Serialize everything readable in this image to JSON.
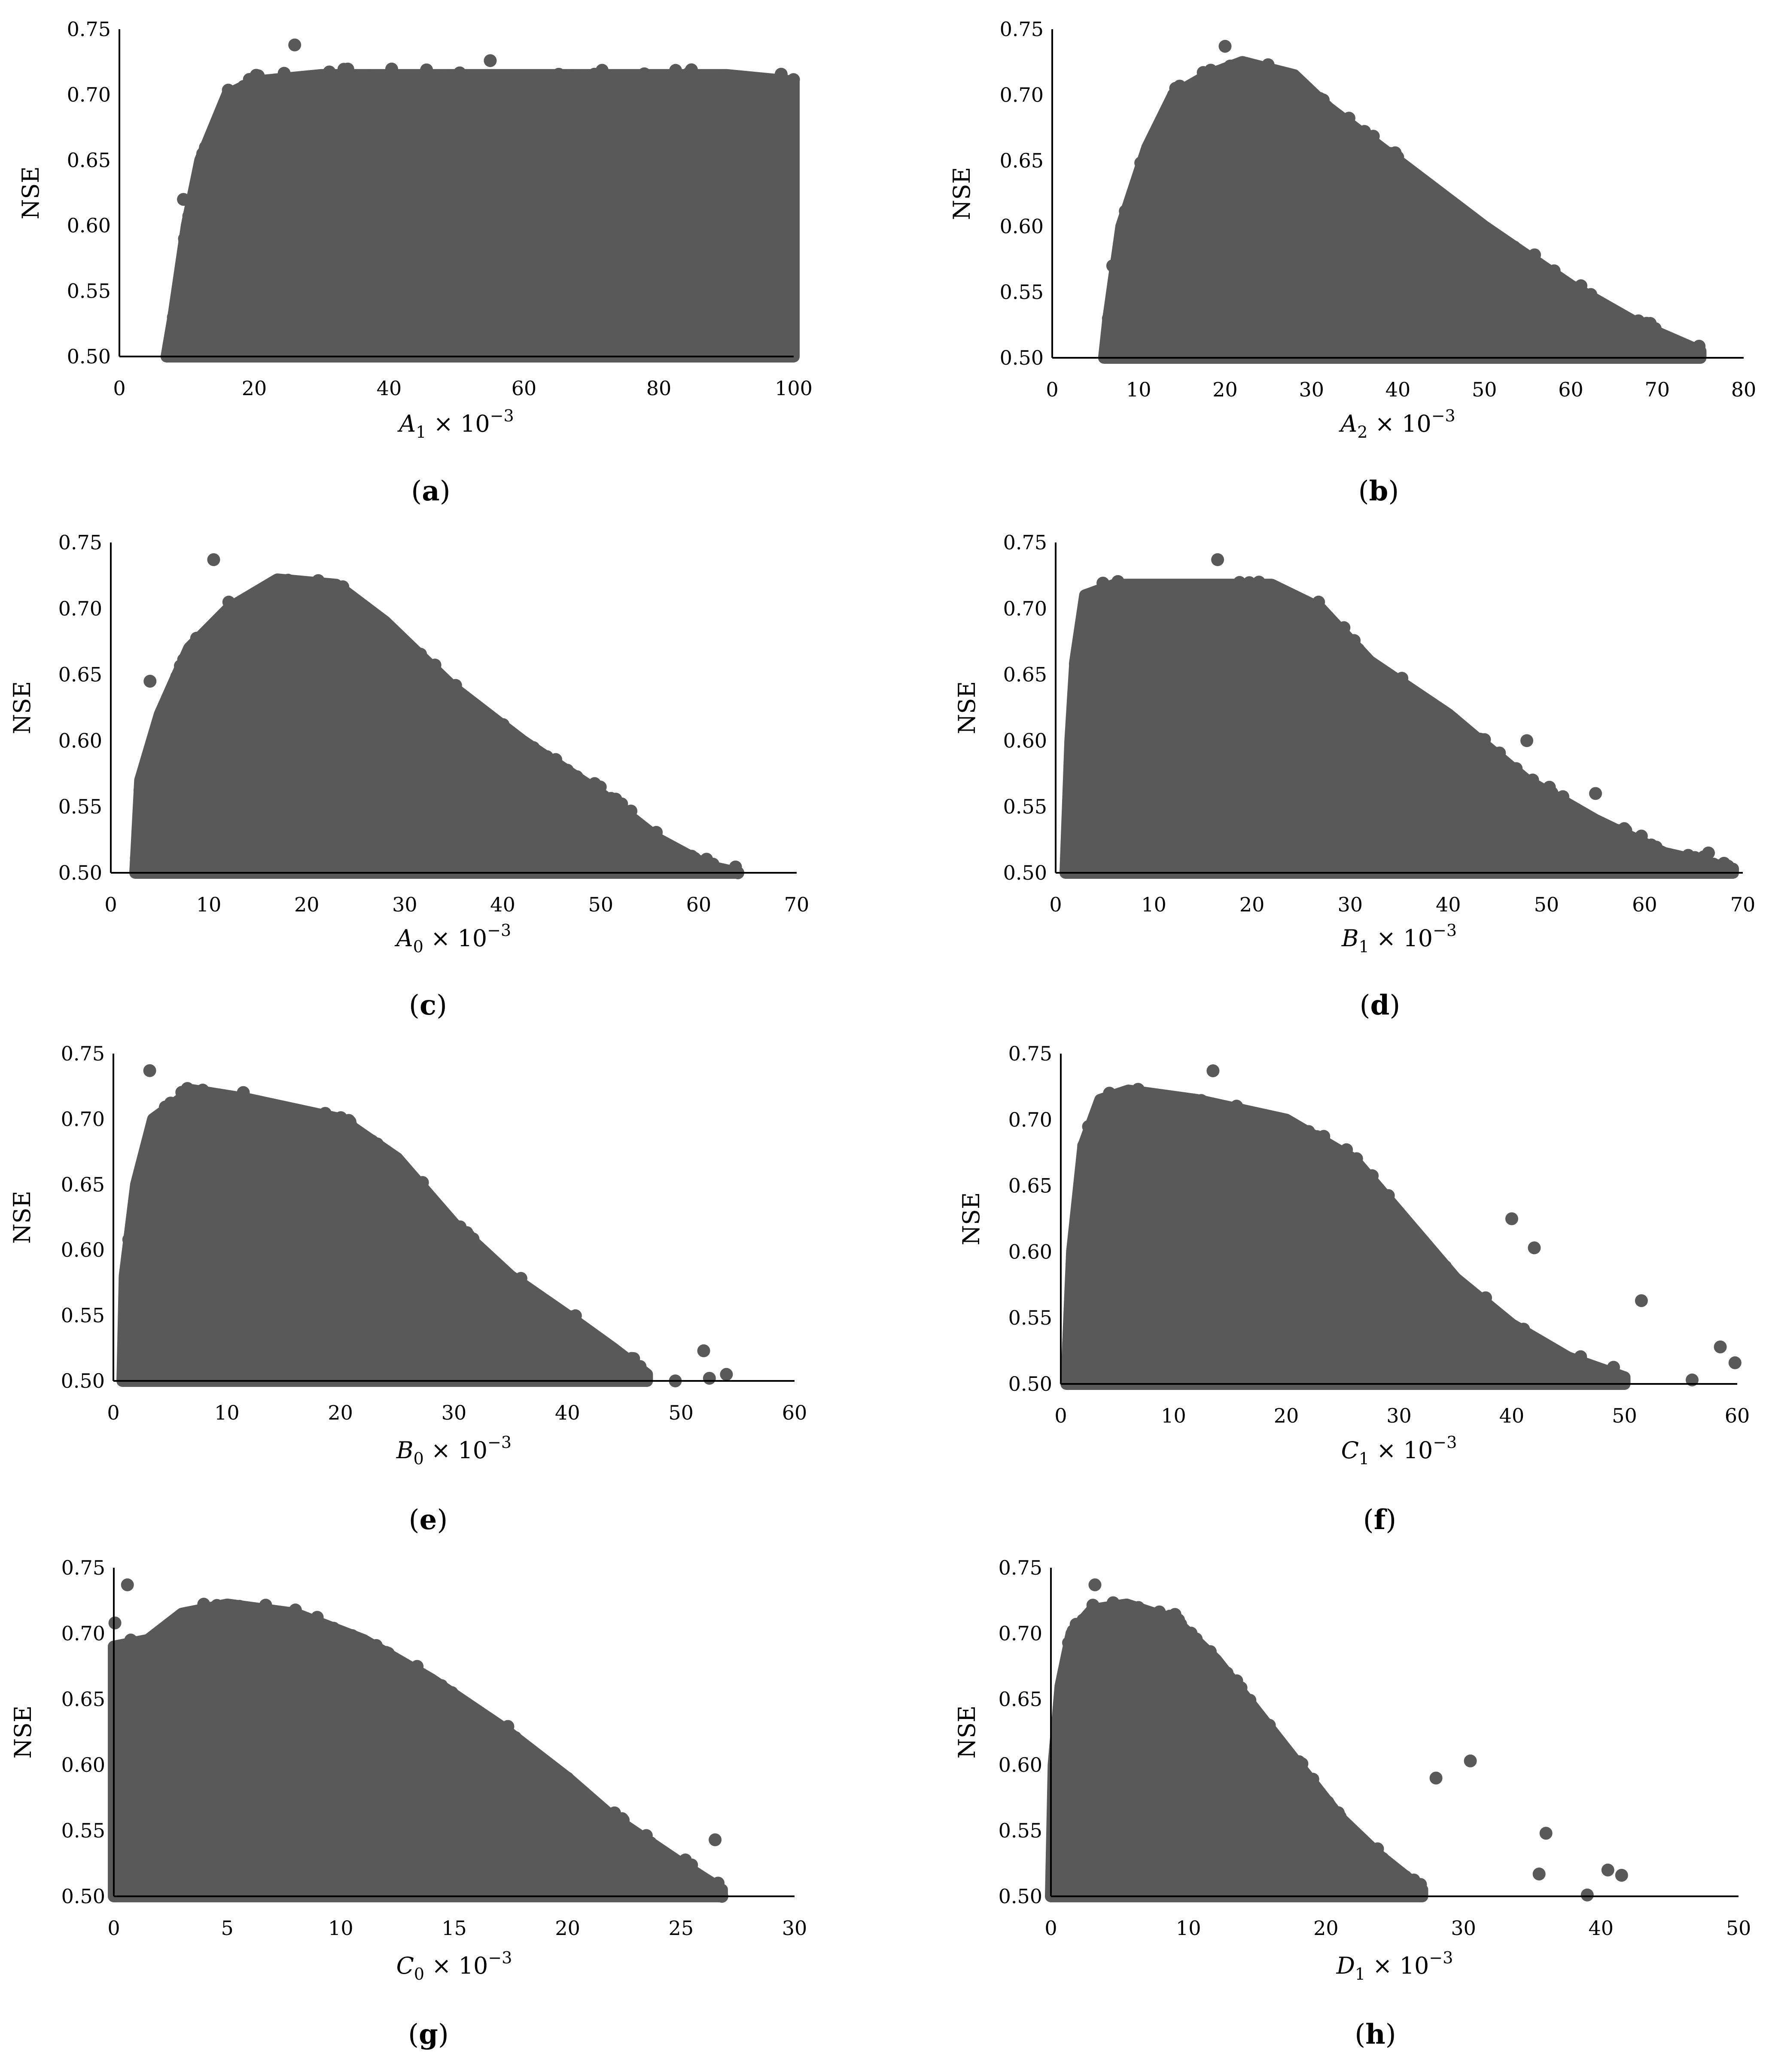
{
  "figure": {
    "dot_color": "#595959",
    "axis_color": "#000000"
  },
  "chart_data": [
    {
      "id": "a",
      "type": "scatter",
      "panel_label": "a",
      "ylabel": "NSE",
      "xlabel": {
        "var": "A",
        "sub": "1",
        "times": "× 10",
        "exp": "−3"
      },
      "xlim": [
        0,
        100
      ],
      "ylim": [
        0.5,
        0.75
      ],
      "xticks": [
        0,
        20,
        40,
        60,
        80,
        100
      ],
      "yticks": [
        0.5,
        0.55,
        0.6,
        0.65,
        0.7,
        0.75
      ],
      "ytick_labels": [
        "0.50",
        "0.55",
        "0.60",
        "0.65",
        "0.70",
        "0.75"
      ],
      "envelope": [
        [
          7,
          0.5
        ],
        [
          8,
          0.53
        ],
        [
          10,
          0.6
        ],
        [
          12,
          0.65
        ],
        [
          16,
          0.7
        ],
        [
          20,
          0.71
        ],
        [
          30,
          0.715
        ],
        [
          60,
          0.715
        ],
        [
          90,
          0.715
        ],
        [
          100,
          0.71
        ],
        [
          100,
          0.5
        ]
      ],
      "notable_points": [
        [
          26,
          0.738
        ],
        [
          7.5,
          0.508
        ],
        [
          55,
          0.726
        ],
        [
          8,
          0.53
        ],
        [
          9.5,
          0.62
        ]
      ]
    },
    {
      "id": "b",
      "type": "scatter",
      "panel_label": "b",
      "ylabel": "NSE",
      "xlabel": {
        "var": "A",
        "sub": "2",
        "times": "× 10",
        "exp": "−3"
      },
      "xlim": [
        0,
        80
      ],
      "ylim": [
        0.5,
        0.75
      ],
      "xticks": [
        0,
        10,
        20,
        30,
        40,
        50,
        60,
        70,
        80
      ],
      "yticks": [
        0.5,
        0.55,
        0.6,
        0.65,
        0.7,
        0.75
      ],
      "ytick_labels": [
        "0.50",
        "0.55",
        "0.60",
        "0.65",
        "0.70",
        "0.75"
      ],
      "envelope": [
        [
          6,
          0.5
        ],
        [
          6.5,
          0.53
        ],
        [
          8,
          0.6
        ],
        [
          11,
          0.66
        ],
        [
          14,
          0.7
        ],
        [
          18,
          0.715
        ],
        [
          22,
          0.725
        ],
        [
          28,
          0.715
        ],
        [
          32,
          0.69
        ],
        [
          40,
          0.65
        ],
        [
          50,
          0.6
        ],
        [
          60,
          0.555
        ],
        [
          68,
          0.525
        ],
        [
          75,
          0.505
        ],
        [
          75,
          0.5
        ]
      ],
      "notable_points": [
        [
          20,
          0.737
        ],
        [
          6.5,
          0.53
        ],
        [
          7,
          0.57
        ],
        [
          72,
          0.51
        ],
        [
          74.5,
          0.505
        ]
      ]
    },
    {
      "id": "c",
      "type": "scatter",
      "panel_label": "c",
      "ylabel": "NSE",
      "xlabel": {
        "var": "A",
        "sub": "0",
        "times": "× 10",
        "exp": "−3"
      },
      "xlim": [
        0,
        70
      ],
      "ylim": [
        0.5,
        0.75
      ],
      "xticks": [
        0,
        10,
        20,
        30,
        40,
        50,
        60,
        70
      ],
      "yticks": [
        0.5,
        0.55,
        0.6,
        0.65,
        0.7,
        0.75
      ],
      "ytick_labels": [
        "0.50",
        "0.55",
        "0.60",
        "0.65",
        "0.70",
        "0.75"
      ],
      "envelope": [
        [
          2.5,
          0.5
        ],
        [
          3,
          0.57
        ],
        [
          5,
          0.62
        ],
        [
          8,
          0.67
        ],
        [
          12,
          0.7
        ],
        [
          17,
          0.722
        ],
        [
          23,
          0.718
        ],
        [
          28,
          0.69
        ],
        [
          35,
          0.64
        ],
        [
          42,
          0.6
        ],
        [
          50,
          0.56
        ],
        [
          56,
          0.525
        ],
        [
          61,
          0.505
        ],
        [
          64,
          0.5
        ]
      ],
      "notable_points": [
        [
          10.5,
          0.737
        ],
        [
          64,
          0.5
        ],
        [
          4,
          0.645
        ],
        [
          59,
          0.51
        ]
      ]
    },
    {
      "id": "d",
      "type": "scatter",
      "panel_label": "d",
      "ylabel": "NSE",
      "xlabel": {
        "var": "B",
        "sub": "1",
        "times": "× 10",
        "exp": "−3"
      },
      "xlim": [
        0,
        70
      ],
      "ylim": [
        0.5,
        0.75
      ],
      "xticks": [
        0,
        10,
        20,
        30,
        40,
        50,
        60,
        70
      ],
      "yticks": [
        0.5,
        0.55,
        0.6,
        0.65,
        0.7,
        0.75
      ],
      "ytick_labels": [
        "0.50",
        "0.55",
        "0.60",
        "0.65",
        "0.70",
        "0.75"
      ],
      "envelope": [
        [
          1,
          0.5
        ],
        [
          1.5,
          0.6
        ],
        [
          2,
          0.66
        ],
        [
          3,
          0.71
        ],
        [
          6,
          0.718
        ],
        [
          15,
          0.718
        ],
        [
          22,
          0.718
        ],
        [
          27,
          0.7
        ],
        [
          32,
          0.66
        ],
        [
          40,
          0.62
        ],
        [
          48,
          0.57
        ],
        [
          55,
          0.54
        ],
        [
          62,
          0.515
        ],
        [
          69,
          0.503
        ],
        [
          69,
          0.5
        ]
      ],
      "notable_points": [
        [
          16.5,
          0.737
        ],
        [
          68.5,
          0.505
        ],
        [
          66.5,
          0.515
        ],
        [
          55,
          0.56
        ],
        [
          48,
          0.6
        ]
      ]
    },
    {
      "id": "e",
      "type": "scatter",
      "panel_label": "e",
      "ylabel": "NSE",
      "xlabel": {
        "var": "B",
        "sub": "0",
        "times": "× 10",
        "exp": "−3"
      },
      "xlim": [
        0,
        60
      ],
      "ylim": [
        0.5,
        0.75
      ],
      "xticks": [
        0,
        10,
        20,
        30,
        40,
        50,
        60
      ],
      "yticks": [
        0.5,
        0.55,
        0.6,
        0.65,
        0.7,
        0.75
      ],
      "ytick_labels": [
        "0.50",
        "0.55",
        "0.60",
        "0.65",
        "0.70",
        "0.75"
      ],
      "envelope": [
        [
          0.8,
          0.5
        ],
        [
          1,
          0.58
        ],
        [
          2,
          0.65
        ],
        [
          3.5,
          0.7
        ],
        [
          7,
          0.722
        ],
        [
          12,
          0.715
        ],
        [
          20,
          0.7
        ],
        [
          25,
          0.67
        ],
        [
          30,
          0.62
        ],
        [
          35,
          0.58
        ],
        [
          40,
          0.55
        ],
        [
          44,
          0.525
        ],
        [
          47,
          0.505
        ],
        [
          47,
          0.5
        ]
      ],
      "notable_points": [
        [
          3.2,
          0.737
        ],
        [
          52,
          0.523
        ],
        [
          54,
          0.505
        ],
        [
          49.5,
          0.5
        ],
        [
          52.5,
          0.502
        ]
      ]
    },
    {
      "id": "f",
      "type": "scatter",
      "panel_label": "f",
      "ylabel": "NSE",
      "xlabel": {
        "var": "C",
        "sub": "1",
        "times": "× 10",
        "exp": "−3"
      },
      "xlim": [
        0,
        60
      ],
      "ylim": [
        0.5,
        0.75
      ],
      "xticks": [
        0,
        10,
        20,
        30,
        40,
        50,
        60
      ],
      "yticks": [
        0.5,
        0.55,
        0.6,
        0.65,
        0.7,
        0.75
      ],
      "ytick_labels": [
        "0.50",
        "0.55",
        "0.60",
        "0.65",
        "0.70",
        "0.75"
      ],
      "envelope": [
        [
          0.5,
          0.5
        ],
        [
          1,
          0.6
        ],
        [
          2,
          0.68
        ],
        [
          3.5,
          0.715
        ],
        [
          6,
          0.722
        ],
        [
          12,
          0.715
        ],
        [
          20,
          0.7
        ],
        [
          26,
          0.67
        ],
        [
          30,
          0.63
        ],
        [
          35,
          0.58
        ],
        [
          40,
          0.545
        ],
        [
          45,
          0.52
        ],
        [
          50,
          0.505
        ],
        [
          50,
          0.5
        ]
      ],
      "notable_points": [
        [
          13.5,
          0.737
        ],
        [
          40,
          0.625
        ],
        [
          42,
          0.603
        ],
        [
          51.5,
          0.563
        ],
        [
          59.8,
          0.516
        ],
        [
          58.5,
          0.528
        ],
        [
          56,
          0.503
        ]
      ]
    },
    {
      "id": "g",
      "type": "scatter",
      "panel_label": "g",
      "ylabel": "NSE",
      "xlabel": {
        "var": "C",
        "sub": "0",
        "times": "× 10",
        "exp": "−3"
      },
      "xlim": [
        0,
        30
      ],
      "ylim": [
        0.5,
        0.75
      ],
      "xticks": [
        0,
        5,
        10,
        15,
        20,
        25,
        30
      ],
      "yticks": [
        0.5,
        0.55,
        0.6,
        0.65,
        0.7,
        0.75
      ],
      "ytick_labels": [
        "0.50",
        "0.55",
        "0.60",
        "0.65",
        "0.70",
        "0.75"
      ],
      "envelope": [
        [
          0,
          0.5
        ],
        [
          0,
          0.69
        ],
        [
          1.5,
          0.695
        ],
        [
          3,
          0.715
        ],
        [
          5,
          0.722
        ],
        [
          8,
          0.715
        ],
        [
          11,
          0.695
        ],
        [
          14,
          0.665
        ],
        [
          17,
          0.63
        ],
        [
          20,
          0.59
        ],
        [
          22,
          0.56
        ],
        [
          25,
          0.525
        ],
        [
          26.8,
          0.505
        ],
        [
          26.8,
          0.5
        ]
      ],
      "notable_points": [
        [
          0.6,
          0.737
        ],
        [
          0.05,
          0.708
        ],
        [
          26.5,
          0.543
        ],
        [
          25.5,
          0.515
        ],
        [
          26.8,
          0.5
        ]
      ]
    },
    {
      "id": "h",
      "type": "scatter",
      "panel_label": "h",
      "ylabel": "NSE",
      "xlabel": {
        "var": "D",
        "sub": "1",
        "times": "× 10",
        "exp": "−3"
      },
      "xlim": [
        0,
        50
      ],
      "ylim": [
        0.5,
        0.75
      ],
      "xticks": [
        0,
        10,
        20,
        30,
        40,
        50
      ],
      "yticks": [
        0.5,
        0.55,
        0.6,
        0.65,
        0.7,
        0.75
      ],
      "ytick_labels": [
        "0.50",
        "0.55",
        "0.60",
        "0.65",
        "0.70",
        "0.75"
      ],
      "envelope": [
        [
          0,
          0.5
        ],
        [
          0.2,
          0.6
        ],
        [
          0.7,
          0.66
        ],
        [
          1.5,
          0.7
        ],
        [
          3,
          0.718
        ],
        [
          5.5,
          0.722
        ],
        [
          9,
          0.71
        ],
        [
          12,
          0.68
        ],
        [
          15,
          0.64
        ],
        [
          18,
          0.6
        ],
        [
          21,
          0.56
        ],
        [
          24,
          0.53
        ],
        [
          27,
          0.505
        ],
        [
          27,
          0.5
        ]
      ],
      "notable_points": [
        [
          3.2,
          0.737
        ],
        [
          30.5,
          0.603
        ],
        [
          28,
          0.59
        ],
        [
          36,
          0.548
        ],
        [
          41.5,
          0.516
        ],
        [
          40.5,
          0.52
        ],
        [
          39,
          0.501
        ],
        [
          35.5,
          0.517
        ]
      ]
    }
  ]
}
